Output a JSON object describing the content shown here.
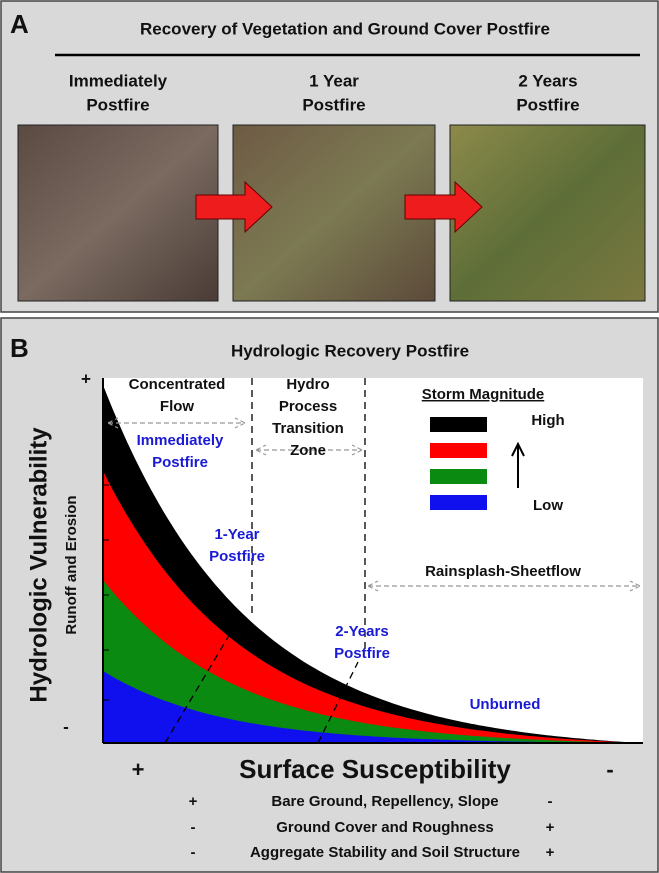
{
  "panel_a": {
    "letter": "A",
    "title": "Recovery of Vegetation and Ground Cover Postfire",
    "photos": [
      {
        "label_lines": [
          "Immediately",
          "Postfire"
        ]
      },
      {
        "label_lines": [
          "1 Year",
          "Postfire"
        ]
      },
      {
        "label_lines": [
          "2 Years",
          "Postfire"
        ]
      }
    ]
  },
  "panel_b": {
    "letter": "B",
    "title": "Hydrologic Recovery Postfire",
    "y_label": "Hydrologic Vulnerability",
    "y_sublabel": "Runoff and Erosion",
    "y_plus": "+",
    "y_minus": "-",
    "x_label": "Surface Susceptibility",
    "x_plus": "+",
    "x_minus": "-",
    "zones": [
      {
        "lines": [
          "Concentrated",
          "Flow"
        ]
      },
      {
        "lines": [
          "Hydro",
          "Process",
          "Transition",
          "Zone"
        ]
      },
      {
        "lines": [
          "Rainsplash-Sheetflow"
        ]
      }
    ],
    "stages": [
      {
        "lines": [
          "Immediately",
          "Postfire"
        ]
      },
      {
        "lines": [
          "1-Year",
          "Postfire"
        ]
      },
      {
        "lines": [
          "2-Years",
          "Postfire"
        ]
      },
      {
        "lines": [
          "Unburned"
        ]
      }
    ],
    "legend": {
      "title": "Storm Magnitude",
      "high": "High",
      "low": "Low"
    },
    "factors": [
      {
        "left": "+",
        "text": "Bare Ground, Repellency, Slope",
        "right": "-"
      },
      {
        "left": "-",
        "text": "Ground Cover and Roughness",
        "right": "+"
      },
      {
        "left": "-",
        "text": "Aggregate Stability and Soil Structure",
        "right": "+"
      }
    ]
  }
}
